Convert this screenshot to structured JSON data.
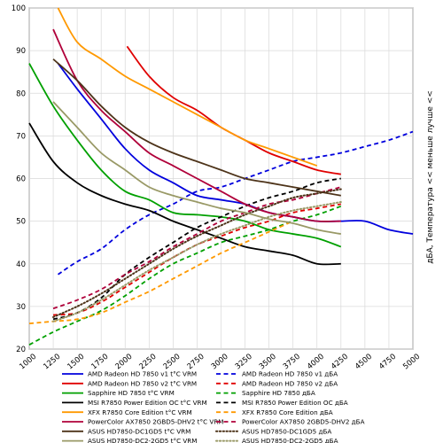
{
  "chart_data": {
    "type": "line",
    "title": "",
    "xlabel": "",
    "ylabel": "дБА, Температура << меньше лучше <<",
    "xlim": [
      1000,
      5000
    ],
    "ylim": [
      20,
      100
    ],
    "x_ticks": [
      1000,
      1250,
      1500,
      1750,
      2000,
      2250,
      2500,
      2750,
      3000,
      3250,
      3500,
      3750,
      4000,
      4250,
      4500,
      4750,
      5000
    ],
    "y_ticks": [
      20,
      30,
      40,
      50,
      60,
      70,
      80,
      90,
      100
    ],
    "grid": true,
    "legend_position": "bottom",
    "series": [
      {
        "name": "AMD Radeon HD 7850 v1 t°C VRM",
        "color": "#0000dd",
        "dash": "solid",
        "x": [
          1300,
          1500,
          1750,
          2000,
          2250,
          2500,
          2750,
          3000,
          3250,
          3500,
          3750,
          4000,
          4250,
          4500,
          4750,
          5000
        ],
        "y": [
          87,
          81,
          74,
          67,
          62,
          59,
          56,
          55,
          54,
          52,
          51,
          50,
          50,
          50,
          48,
          47
        ]
      },
      {
        "name": "AMD Radeon HD 7850 v1 дБА",
        "color": "#0000dd",
        "dash": "dash",
        "x": [
          1300,
          1500,
          1750,
          2000,
          2250,
          2500,
          2750,
          3000,
          3250,
          3500,
          3750,
          4000,
          4250,
          4500,
          4750,
          5000
        ],
        "y": [
          37.5,
          40.5,
          43.5,
          48,
          51.5,
          54,
          57,
          58,
          60,
          62,
          64,
          65,
          66,
          67.5,
          69,
          71
        ]
      },
      {
        "name": "AMD Radeon HD 7850 v2 t°C VRM",
        "color": "#e00000",
        "dash": "solid",
        "x": [
          2020,
          2250,
          2500,
          2750,
          3000,
          3250,
          3500,
          3750,
          4000,
          4250
        ],
        "y": [
          91,
          84,
          79,
          76,
          72,
          69,
          66,
          64,
          62,
          61
        ]
      },
      {
        "name": "AMD Radeon HD 7850 v2 дБА",
        "color": "#e00000",
        "dash": "dash",
        "x": [
          1250,
          1500,
          1750,
          2000,
          2250,
          2500,
          2750,
          3000,
          3250,
          3500,
          3750,
          4000,
          4250
        ],
        "y": [
          28,
          28.5,
          31,
          34.5,
          38,
          41.5,
          44.5,
          46.5,
          48.5,
          50,
          52,
          53,
          54
        ]
      },
      {
        "name": "Sapphire HD 7850 t°C VRM",
        "color": "#00a000",
        "dash": "solid",
        "x": [
          1000,
          1250,
          1500,
          1750,
          2000,
          2250,
          2500,
          2750,
          3000,
          3250,
          3500,
          3750,
          4000,
          4250
        ],
        "y": [
          87,
          77,
          69,
          62,
          57,
          55,
          52,
          51.5,
          51,
          50,
          48,
          47,
          46,
          44
        ]
      },
      {
        "name": "Sapphire HD 7850 дБА",
        "color": "#00a000",
        "dash": "dash",
        "x": [
          1000,
          1250,
          1500,
          1750,
          2000,
          2250,
          2500,
          2750,
          3000,
          3250,
          3500,
          3750,
          4000,
          4250
        ],
        "y": [
          21,
          24,
          26.5,
          29,
          32.5,
          36.5,
          40,
          42.5,
          45,
          46.5,
          48,
          50,
          51.5,
          53.5
        ]
      },
      {
        "name": "MSI R7850 Power Edition OC t°C VRM",
        "color": "#000000",
        "dash": "solid",
        "x": [
          1000,
          1250,
          1500,
          1750,
          2000,
          2250,
          2500,
          2750,
          3000,
          3250,
          3500,
          3750,
          4000,
          4250
        ],
        "y": [
          73,
          64,
          59,
          56,
          54,
          52.5,
          50,
          48,
          46,
          44,
          43,
          42,
          40,
          40
        ]
      },
      {
        "name": "MSI R7850 Power Edition OC дБА",
        "color": "#000000",
        "dash": "dash",
        "x": [
          1250,
          1500,
          1750,
          2000,
          2250,
          2500,
          2750,
          3000,
          3250,
          3500,
          3750,
          4000,
          4250
        ],
        "y": [
          27,
          28.5,
          32,
          37.5,
          41.5,
          45,
          48.5,
          51,
          53.5,
          55.5,
          57,
          59,
          60
        ]
      },
      {
        "name": "XFX R7850 Core Edition t°C VRM",
        "color": "#ff9900",
        "dash": "solid",
        "x": [
          1300,
          1500,
          1750,
          2000,
          2250,
          2500,
          2750,
          3000,
          3250,
          3500,
          3750,
          4000
        ],
        "y": [
          100,
          92,
          88,
          84,
          81,
          78,
          75,
          72,
          69,
          67,
          65,
          63
        ]
      },
      {
        "name": "XFX R7850 Core Edition дБА",
        "color": "#ff9900",
        "dash": "dash",
        "x": [
          1000,
          1250,
          1500,
          1750,
          2000,
          2250,
          2500,
          2750,
          3000,
          3250,
          3500,
          3750
        ],
        "y": [
          26,
          26.5,
          27,
          28.5,
          31,
          33.5,
          36.5,
          39.5,
          42.5,
          45,
          47.5,
          50
        ]
      },
      {
        "name": "PowerColor AX7850 2GBD5-DHV2 t°C VRM",
        "color": "#b0003a",
        "dash": "solid",
        "x": [
          1250,
          1500,
          1750,
          2000,
          2250,
          2500,
          2750,
          3000,
          3250,
          3500,
          3750,
          4000,
          4250
        ],
        "y": [
          95,
          83,
          76,
          71,
          66,
          63,
          60,
          57,
          54,
          52,
          51,
          50,
          50
        ]
      },
      {
        "name": "PowerColor AX7850 2GBD5-DHV2 дБА",
        "color": "#b0003a",
        "dash": "dash",
        "x": [
          1250,
          1500,
          1750,
          2000,
          2250,
          2500,
          2750,
          3000,
          3250,
          3500,
          3750,
          4000,
          4250
        ],
        "y": [
          29.5,
          31.5,
          34,
          37.5,
          40.5,
          44,
          47,
          50,
          52,
          54,
          55,
          56.5,
          58
        ]
      },
      {
        "name": "ASUS HD7850-DC1GD5 t°C VRM",
        "color": "#4d3319",
        "dash": "solid",
        "x": [
          1250,
          1500,
          1750,
          2000,
          2250,
          2500,
          2750,
          3000,
          3250,
          3500,
          3750,
          4000,
          4250
        ],
        "y": [
          88,
          83,
          77,
          72,
          68.5,
          66,
          64,
          62,
          60,
          59,
          58,
          57,
          56
        ]
      },
      {
        "name": "ASUS HD7850-DC1GD5 дБА",
        "color": "#4d3319",
        "dash": "dot",
        "x": [
          1250,
          1500,
          1750,
          2000,
          2250,
          2500,
          2750,
          3000,
          3250,
          3500,
          3750,
          4000,
          4250
        ],
        "y": [
          27.5,
          30,
          33,
          36.5,
          40,
          43.5,
          46.5,
          49,
          51.5,
          53.5,
          55.5,
          56.5,
          57.5
        ]
      },
      {
        "name": "ASUS HD7850-DC2-2GD5 t°C VRM",
        "color": "#999966",
        "dash": "solid",
        "x": [
          1250,
          1500,
          1750,
          2000,
          2250,
          2500,
          2750,
          3000,
          3250,
          3500,
          3750,
          4000,
          4250
        ],
        "y": [
          78,
          72,
          66,
          62,
          58,
          56,
          54.5,
          53,
          52,
          50.5,
          49.5,
          48,
          47
        ]
      },
      {
        "name": "ASUS HD7850-DC2-2GD5 дБА",
        "color": "#999966",
        "dash": "dot",
        "x": [
          1250,
          1500,
          1750,
          2000,
          2250,
          2500,
          2750,
          3000,
          3250,
          3500,
          3750,
          4000,
          4250
        ],
        "y": [
          26.5,
          28.5,
          31.5,
          35,
          38.5,
          41.5,
          44.5,
          47,
          49,
          51,
          52.5,
          53.5,
          54.5
        ]
      }
    ]
  }
}
